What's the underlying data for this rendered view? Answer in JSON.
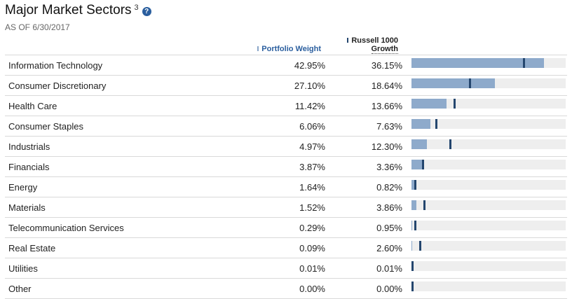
{
  "header": {
    "title": "Major Market Sectors",
    "footnote": "3",
    "help_icon": "question-circle-icon",
    "as_of": "AS OF 6/30/2017"
  },
  "columns": {
    "portfolio": "Portfolio Weight",
    "benchmark_line1": "Russell 1000",
    "benchmark_line2": "Growth"
  },
  "colors": {
    "portfolio_bar": "#8eaacb",
    "benchmark_marker": "#24466e",
    "track": "#eeeeee",
    "accent": "#2a5e9e"
  },
  "bar_scale_max": 50,
  "sectors": [
    {
      "name": "Information Technology",
      "portfolio": "42.95%",
      "benchmark": "36.15%",
      "p": 42.95,
      "b": 36.15
    },
    {
      "name": "Consumer Discretionary",
      "portfolio": "27.10%",
      "benchmark": "18.64%",
      "p": 27.1,
      "b": 18.64
    },
    {
      "name": "Health Care",
      "portfolio": "11.42%",
      "benchmark": "13.66%",
      "p": 11.42,
      "b": 13.66
    },
    {
      "name": "Consumer Staples",
      "portfolio": "6.06%",
      "benchmark": "7.63%",
      "p": 6.06,
      "b": 7.63
    },
    {
      "name": "Industrials",
      "portfolio": "4.97%",
      "benchmark": "12.30%",
      "p": 4.97,
      "b": 12.3
    },
    {
      "name": "Financials",
      "portfolio": "3.87%",
      "benchmark": "3.36%",
      "p": 3.87,
      "b": 3.36
    },
    {
      "name": "Energy",
      "portfolio": "1.64%",
      "benchmark": "0.82%",
      "p": 1.64,
      "b": 0.82
    },
    {
      "name": "Materials",
      "portfolio": "1.52%",
      "benchmark": "3.86%",
      "p": 1.52,
      "b": 3.86
    },
    {
      "name": "Telecommunication Services",
      "portfolio": "0.29%",
      "benchmark": "0.95%",
      "p": 0.29,
      "b": 0.95
    },
    {
      "name": "Real Estate",
      "portfolio": "0.09%",
      "benchmark": "2.60%",
      "p": 0.09,
      "b": 2.6
    },
    {
      "name": "Utilities",
      "portfolio": "0.01%",
      "benchmark": "0.01%",
      "p": 0.01,
      "b": 0.01
    },
    {
      "name": "Other",
      "portfolio": "0.00%",
      "benchmark": "0.00%",
      "p": 0.0,
      "b": 0.0
    }
  ]
}
